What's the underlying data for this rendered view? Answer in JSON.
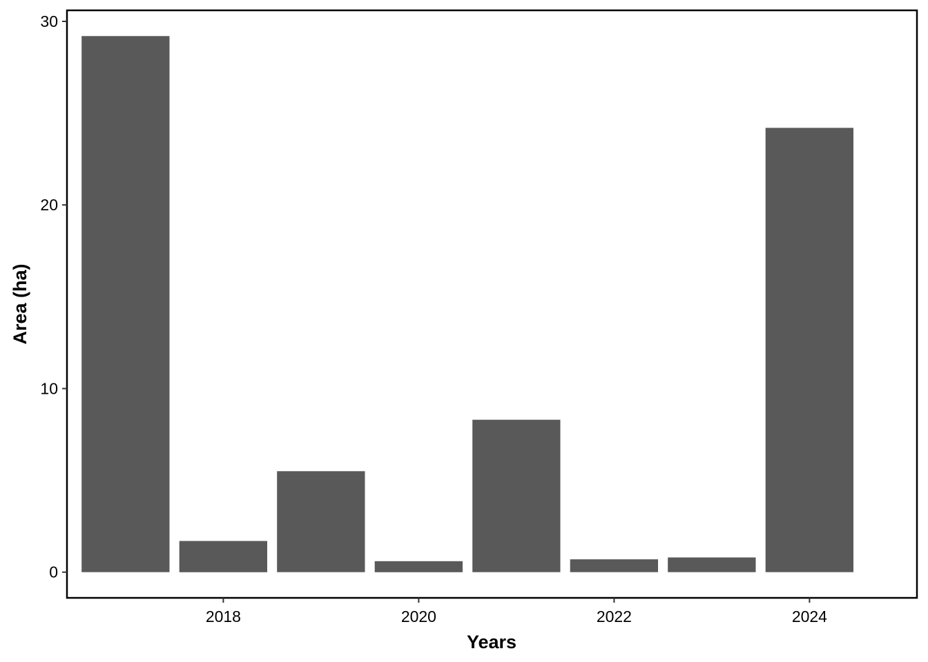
{
  "chart_data": {
    "type": "bar",
    "title": "",
    "xlabel": "Years",
    "ylabel": "Area (ha)",
    "categories": [
      2017,
      2018,
      2019,
      2020,
      2021,
      2022,
      2023,
      2024
    ],
    "values": [
      29.2,
      1.7,
      5.5,
      0.6,
      8.3,
      0.7,
      0.8,
      24.2
    ],
    "x_ticks": [
      2018,
      2020,
      2022,
      2024
    ],
    "x_tick_labels": [
      "2018",
      "2020",
      "2022",
      "2024"
    ],
    "y_ticks": [
      0,
      10,
      20,
      30
    ],
    "y_tick_labels": [
      "0",
      "10",
      "20",
      "30"
    ],
    "xlim": [
      2016.4,
      2025.1
    ],
    "ylim": [
      -1.4,
      30.6
    ],
    "bar_color": "#595959",
    "grid": false,
    "legend": "none"
  }
}
